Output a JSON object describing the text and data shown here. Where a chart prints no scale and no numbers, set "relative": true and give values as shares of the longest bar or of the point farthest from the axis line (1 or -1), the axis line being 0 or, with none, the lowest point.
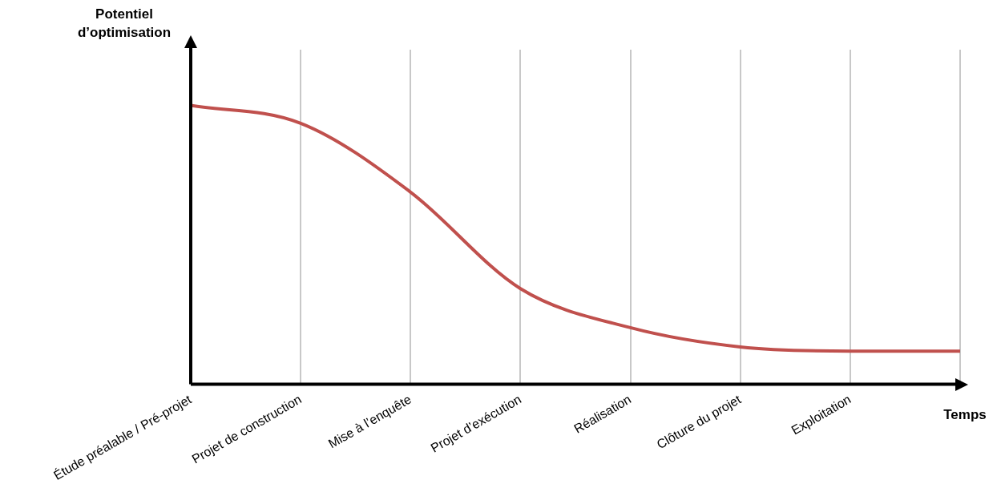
{
  "chart_data": {
    "type": "line",
    "relative": true,
    "ylabel": "Potentiel d’optimisation",
    "xlabel": "Temps",
    "categories": [
      "Étude préalable / Pré-projet",
      "Projet de construction",
      "Mise à l’enquête",
      "Projet d’exécution",
      "Réalisation",
      "Clôture du projet",
      "Exploitation",
      null
    ],
    "series": [
      {
        "color": "#c0504d",
        "values": [
          1,
          0.936,
          0.689,
          0.343,
          0.203,
          0.134,
          0.119,
          0.119
        ]
      }
    ],
    "grid": "x",
    "legend": false
  }
}
